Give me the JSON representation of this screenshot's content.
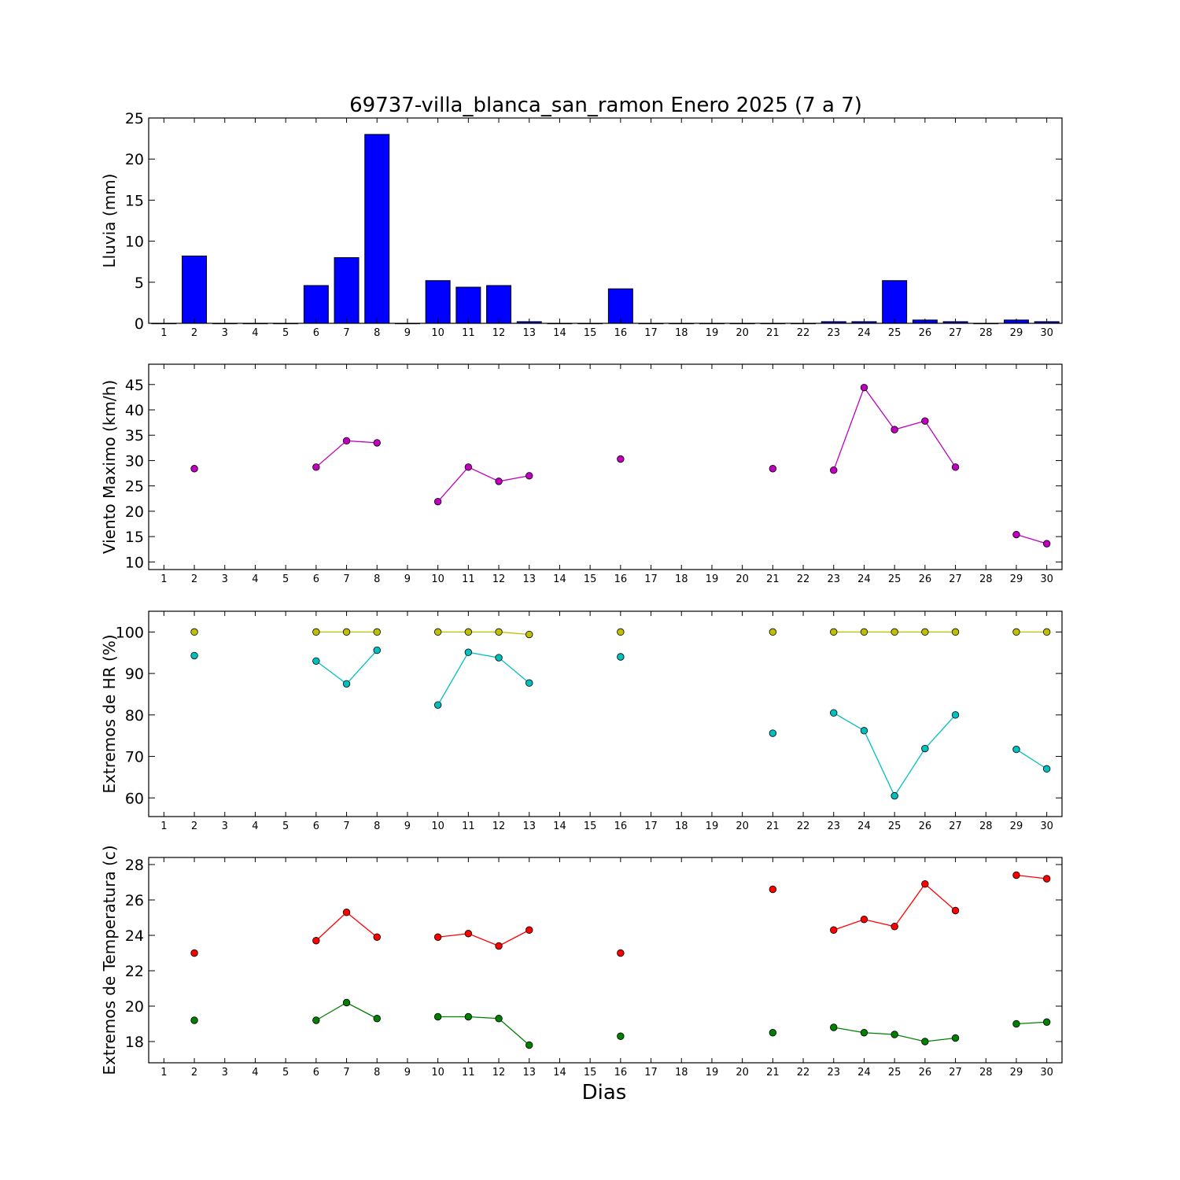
{
  "title": "69737-villa_blanca_san_ramon Enero 2025  (7 a 7)",
  "xlabel": "Dias",
  "chart_data": [
    {
      "type": "bar",
      "ylabel": "Lluvia (mm)",
      "x": [
        1,
        2,
        3,
        4,
        5,
        6,
        7,
        8,
        9,
        10,
        11,
        12,
        13,
        14,
        15,
        16,
        17,
        18,
        19,
        20,
        21,
        22,
        23,
        24,
        25,
        26,
        27,
        28,
        29,
        30
      ],
      "ylim": [
        0,
        25
      ],
      "yticks": [
        0,
        5,
        10,
        15,
        20,
        25
      ],
      "series": [
        {
          "color": "#0000ff",
          "values": [
            0,
            8.2,
            0,
            0,
            0,
            4.6,
            8.0,
            23.0,
            0,
            5.2,
            4.4,
            4.6,
            0.2,
            0,
            0,
            4.2,
            0,
            0,
            0,
            0,
            0,
            0,
            0.2,
            0.2,
            5.2,
            0.4,
            0.2,
            0,
            0.4,
            0.2
          ]
        }
      ]
    },
    {
      "type": "line",
      "ylabel": "Viento Maximo (km/h)",
      "x": [
        1,
        2,
        3,
        4,
        5,
        6,
        7,
        8,
        9,
        10,
        11,
        12,
        13,
        14,
        15,
        16,
        17,
        18,
        19,
        20,
        21,
        22,
        23,
        24,
        25,
        26,
        27,
        28,
        29,
        30
      ],
      "ylim": [
        8.5,
        49
      ],
      "yticks": [
        10,
        15,
        20,
        25,
        30,
        35,
        40,
        45
      ],
      "series": [
        {
          "color": "#bf00bf",
          "values": [
            null,
            28.4,
            null,
            null,
            null,
            28.7,
            33.9,
            33.5,
            null,
            21.9,
            28.7,
            25.9,
            27.0,
            null,
            null,
            30.3,
            null,
            null,
            null,
            null,
            28.4,
            null,
            28.1,
            44.4,
            36.1,
            37.8,
            28.7,
            null,
            15.4,
            13.6
          ]
        }
      ]
    },
    {
      "type": "line",
      "ylabel": "Extremos de HR (%)",
      "x": [
        1,
        2,
        3,
        4,
        5,
        6,
        7,
        8,
        9,
        10,
        11,
        12,
        13,
        14,
        15,
        16,
        17,
        18,
        19,
        20,
        21,
        22,
        23,
        24,
        25,
        26,
        27,
        28,
        29,
        30
      ],
      "ylim": [
        55.5,
        105
      ],
      "yticks": [
        60,
        70,
        80,
        90,
        100
      ],
      "series": [
        {
          "color": "#bfbf00",
          "values": [
            null,
            100,
            null,
            null,
            null,
            100,
            100,
            100,
            null,
            100,
            100,
            100,
            99.4,
            null,
            null,
            100,
            null,
            null,
            null,
            null,
            100,
            null,
            100,
            100,
            100,
            100,
            100,
            null,
            100,
            100
          ]
        },
        {
          "color": "#00bfbf",
          "values": [
            null,
            94.3,
            null,
            null,
            null,
            93.0,
            87.5,
            95.6,
            null,
            82.4,
            95.1,
            93.8,
            87.7,
            null,
            null,
            94.0,
            null,
            null,
            null,
            null,
            75.6,
            null,
            80.5,
            76.2,
            60.5,
            71.9,
            80.0,
            null,
            71.7,
            67.0
          ]
        }
      ]
    },
    {
      "type": "line",
      "ylabel": "Extremos de Temperatura (c)",
      "x": [
        1,
        2,
        3,
        4,
        5,
        6,
        7,
        8,
        9,
        10,
        11,
        12,
        13,
        14,
        15,
        16,
        17,
        18,
        19,
        20,
        21,
        22,
        23,
        24,
        25,
        26,
        27,
        28,
        29,
        30
      ],
      "ylim": [
        16.8,
        28.4
      ],
      "yticks": [
        18,
        20,
        22,
        24,
        26,
        28
      ],
      "series": [
        {
          "color": "#ff0000",
          "values": [
            null,
            23.0,
            null,
            null,
            null,
            23.7,
            25.3,
            23.9,
            null,
            23.9,
            24.1,
            23.4,
            24.3,
            null,
            null,
            23.0,
            null,
            null,
            null,
            null,
            26.6,
            null,
            24.3,
            24.9,
            24.5,
            26.9,
            25.4,
            null,
            27.4,
            27.2
          ]
        },
        {
          "color": "#008000",
          "values": [
            null,
            19.2,
            null,
            null,
            null,
            19.2,
            20.2,
            19.3,
            null,
            19.4,
            19.4,
            19.3,
            17.8,
            null,
            null,
            18.3,
            null,
            null,
            null,
            null,
            18.5,
            null,
            18.8,
            18.5,
            18.4,
            18.0,
            18.2,
            null,
            19.0,
            19.1
          ]
        }
      ]
    }
  ]
}
